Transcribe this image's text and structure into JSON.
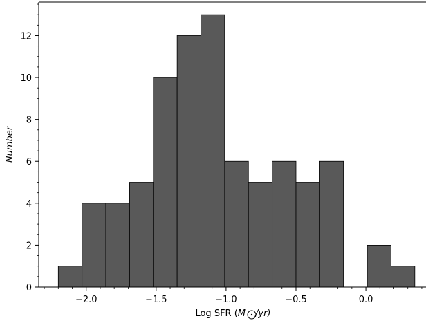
{
  "chart_data": {
    "type": "bar",
    "bins": [
      {
        "x0": -2.2,
        "x1": -2.03,
        "value": 1
      },
      {
        "x0": -2.03,
        "x1": -1.86,
        "value": 4
      },
      {
        "x0": -1.86,
        "x1": -1.69,
        "value": 4
      },
      {
        "x0": -1.69,
        "x1": -1.52,
        "value": 5
      },
      {
        "x0": -1.52,
        "x1": -1.35,
        "value": 10
      },
      {
        "x0": -1.35,
        "x1": -1.18,
        "value": 12
      },
      {
        "x0": -1.18,
        "x1": -1.01,
        "value": 13
      },
      {
        "x0": -1.01,
        "x1": -0.84,
        "value": 6
      },
      {
        "x0": -0.84,
        "x1": -0.67,
        "value": 5
      },
      {
        "x0": -0.67,
        "x1": -0.5,
        "value": 6
      },
      {
        "x0": -0.5,
        "x1": -0.33,
        "value": 5
      },
      {
        "x0": -0.33,
        "x1": -0.16,
        "value": 6
      },
      {
        "x0": -0.16,
        "x1": 0.01,
        "value": 0
      },
      {
        "x0": 0.01,
        "x1": 0.18,
        "value": 2
      },
      {
        "x0": 0.18,
        "x1": 0.35,
        "value": 1
      }
    ],
    "xlabel_prefix": "Log SFR (",
    "xlabel_unit_base": "M",
    "xlabel_unit_suffix": "/yr)",
    "ylabel": "Number",
    "xlim": [
      -2.34,
      0.43
    ],
    "ylim": [
      0,
      13.6
    ],
    "xticks": [
      -2.0,
      -1.5,
      -1.0,
      -0.5,
      0.0
    ],
    "xtick_labels": [
      "−2.0",
      "−1.5",
      "−1.0",
      "−0.5",
      "0.0"
    ],
    "yticks": [
      0,
      2,
      4,
      6,
      8,
      10,
      12
    ],
    "ytick_labels": [
      "0",
      "2",
      "4",
      "6",
      "8",
      "10",
      "12"
    ],
    "bar_color": "#595959",
    "bar_edge_color": "#000000",
    "grid": false
  }
}
